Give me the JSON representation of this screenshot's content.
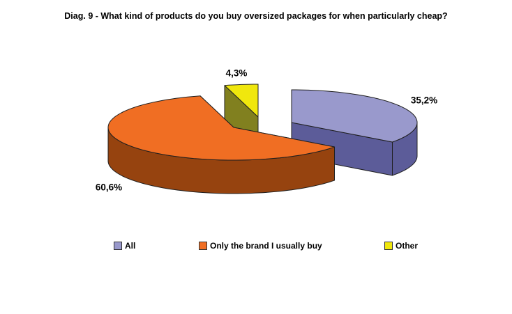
{
  "title": "Diag. 9 - What kind of products do you buy oversized packages for when particularly cheap?",
  "chart_data": {
    "type": "pie",
    "style": "3d-exploded",
    "unit": "%",
    "start_angle_deg": 0,
    "direction": "clockwise",
    "legend_position": "bottom",
    "background": "#ffffff",
    "outline_color": "#1f1f1f",
    "slices": [
      {
        "label": "All",
        "value": 35.2,
        "display": "35,2%",
        "color_top": "#9999CC",
        "color_side": "#5C5C99"
      },
      {
        "label": "Only the brand I usually buy",
        "value": 60.6,
        "display": "60,6%",
        "color_top": "#F06E23",
        "color_side": "#96430F"
      },
      {
        "label": "Other",
        "value": 4.3,
        "display": "4,3%",
        "color_top": "#F0E70D",
        "color_side": "#81801F"
      }
    ]
  }
}
